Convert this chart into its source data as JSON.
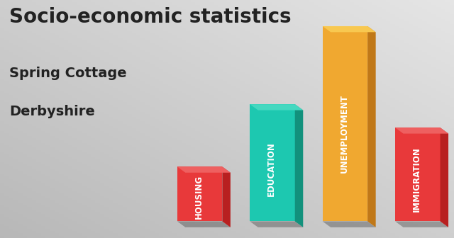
{
  "title": "Socio-economic statistics",
  "subtitle1": "Spring Cottage",
  "subtitle2": "Derbyshire",
  "categories": [
    "HOUSING",
    "EDUCATION",
    "UNEMPLOYMENT",
    "IMMIGRATION"
  ],
  "values": [
    0.28,
    0.6,
    1.0,
    0.48
  ],
  "bar_colors": [
    "#e8393a",
    "#1dc8b0",
    "#f0a830",
    "#e8393a"
  ],
  "bar_right_colors": [
    "#b82020",
    "#12917c",
    "#c07818",
    "#b82020"
  ],
  "bar_top_colors": [
    "#ee6060",
    "#45d8c0",
    "#f8c850",
    "#ee6060"
  ],
  "background_color": "#d8d8d8",
  "title_color": "#222222",
  "label_color": "#ffffff",
  "title_fontsize": 20,
  "subtitle_fontsize": 14,
  "label_fontsize": 8.5
}
